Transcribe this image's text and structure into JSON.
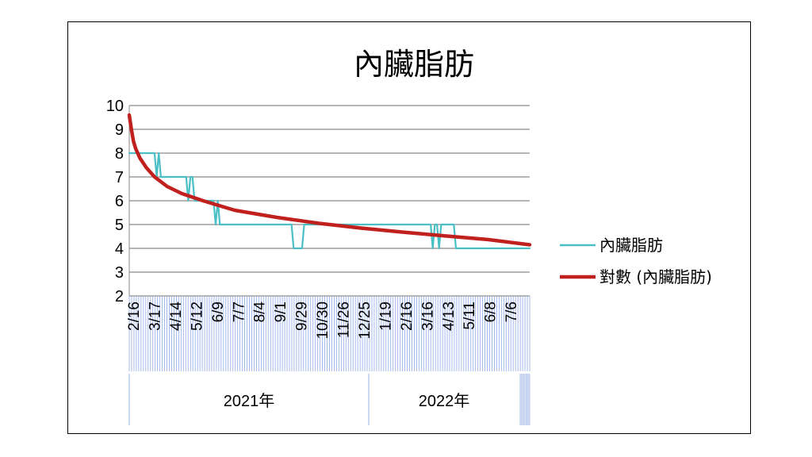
{
  "chart_data": {
    "type": "line",
    "title": "內臟脂肪",
    "ylim": [
      2,
      10
    ],
    "y_ticks": [
      "2",
      "3",
      "4",
      "5",
      "6",
      "7",
      "8",
      "9",
      "10"
    ],
    "grid": "horizontal",
    "legend_position": "right",
    "x_tick_labels": [
      "2/16",
      "3/17",
      "4/14",
      "5/12",
      "6/9",
      "7/7",
      "8/4",
      "9/1",
      "9/29",
      "10/30",
      "11/26",
      "12/25",
      "1/19",
      "2/16",
      "3/16",
      "4/13",
      "5/11",
      "6/8",
      "7/6"
    ],
    "year_groups": [
      "2021年",
      "2022年"
    ],
    "series": [
      {
        "name": "內臟脂肪",
        "color": "#4BBFC6",
        "points": [
          [
            0,
            8
          ],
          [
            12,
            8
          ],
          [
            13,
            7
          ],
          [
            14,
            8
          ],
          [
            15,
            7
          ],
          [
            27,
            7
          ],
          [
            28,
            6
          ],
          [
            29,
            7
          ],
          [
            30,
            7
          ],
          [
            31,
            6
          ],
          [
            40,
            6
          ],
          [
            41,
            5
          ],
          [
            42,
            6
          ],
          [
            43,
            5
          ],
          [
            77,
            5
          ],
          [
            78,
            4
          ],
          [
            82,
            4
          ],
          [
            83,
            5
          ],
          [
            143,
            5
          ],
          [
            144,
            4
          ],
          [
            145,
            5
          ],
          [
            146,
            5
          ],
          [
            147,
            4
          ],
          [
            148,
            5
          ],
          [
            154,
            5
          ],
          [
            155,
            4
          ],
          [
            190,
            4
          ]
        ]
      },
      {
        "name": "對數 (內臟脂肪)",
        "color": "#C0201E",
        "type": "logarithmic",
        "points": [
          [
            0,
            9.6
          ],
          [
            1,
            9.0
          ],
          [
            2,
            8.5
          ],
          [
            3,
            8.2
          ],
          [
            5,
            7.8
          ],
          [
            8,
            7.4
          ],
          [
            12,
            7.0
          ],
          [
            18,
            6.6
          ],
          [
            25,
            6.3
          ],
          [
            35,
            6.0
          ],
          [
            50,
            5.6
          ],
          [
            70,
            5.3
          ],
          [
            90,
            5.05
          ],
          [
            110,
            4.85
          ],
          [
            130,
            4.68
          ],
          [
            150,
            4.52
          ],
          [
            170,
            4.37
          ],
          [
            190,
            4.15
          ]
        ]
      }
    ]
  }
}
